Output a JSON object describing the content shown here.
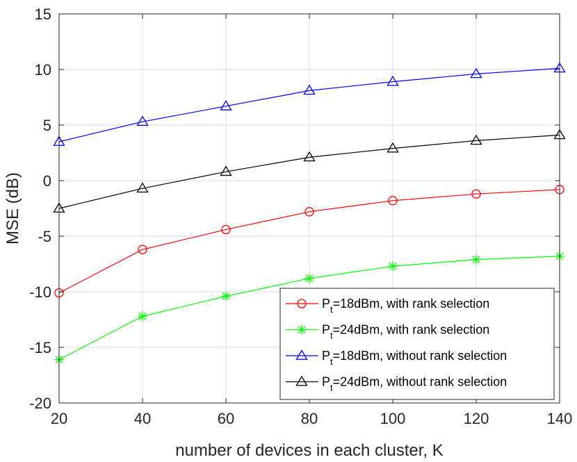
{
  "chart_data": {
    "type": "line",
    "title": "",
    "xlabel": "number of devices in each cluster, K",
    "ylabel": "MSE (dB)",
    "xlim": [
      20,
      140
    ],
    "ylim": [
      -20,
      15
    ],
    "xticks": [
      20,
      40,
      60,
      80,
      100,
      120,
      140
    ],
    "yticks": [
      -20,
      -15,
      -10,
      -5,
      0,
      5,
      10,
      15
    ],
    "grid": true,
    "legend_position": "bottom-right",
    "x": [
      20,
      40,
      60,
      80,
      100,
      120,
      140
    ],
    "series": [
      {
        "name": "P_t=18dBm, with rank selection",
        "legend_main": "P",
        "legend_sub": "t",
        "legend_rest": "=18dBm, with rank selection",
        "color": "#ff0000",
        "marker": "circle",
        "values": [
          -10.1,
          -6.2,
          -4.4,
          -2.8,
          -1.8,
          -1.2,
          -0.8
        ]
      },
      {
        "name": "P_t=24dBm, with rank selection",
        "legend_main": "P",
        "legend_sub": "t",
        "legend_rest": "=24dBm, with rank selection",
        "color": "#00ff00",
        "marker": "asterisk",
        "values": [
          -16.1,
          -12.2,
          -10.4,
          -8.8,
          -7.7,
          -7.1,
          -6.8
        ]
      },
      {
        "name": "P_t=18dBm, without rank selection",
        "legend_main": "P",
        "legend_sub": "t",
        "legend_rest": "=18dBm, without rank selection",
        "color": "#0000ff",
        "marker": "triangle",
        "values": [
          3.5,
          5.3,
          6.7,
          8.1,
          8.9,
          9.6,
          10.1
        ]
      },
      {
        "name": "P_t=24dBm, without rank selection",
        "legend_main": "P",
        "legend_sub": "t",
        "legend_rest": "=24dBm, without rank selection",
        "color": "#000000",
        "marker": "triangle",
        "values": [
          -2.5,
          -0.7,
          0.8,
          2.1,
          2.9,
          3.6,
          4.1
        ]
      }
    ]
  }
}
